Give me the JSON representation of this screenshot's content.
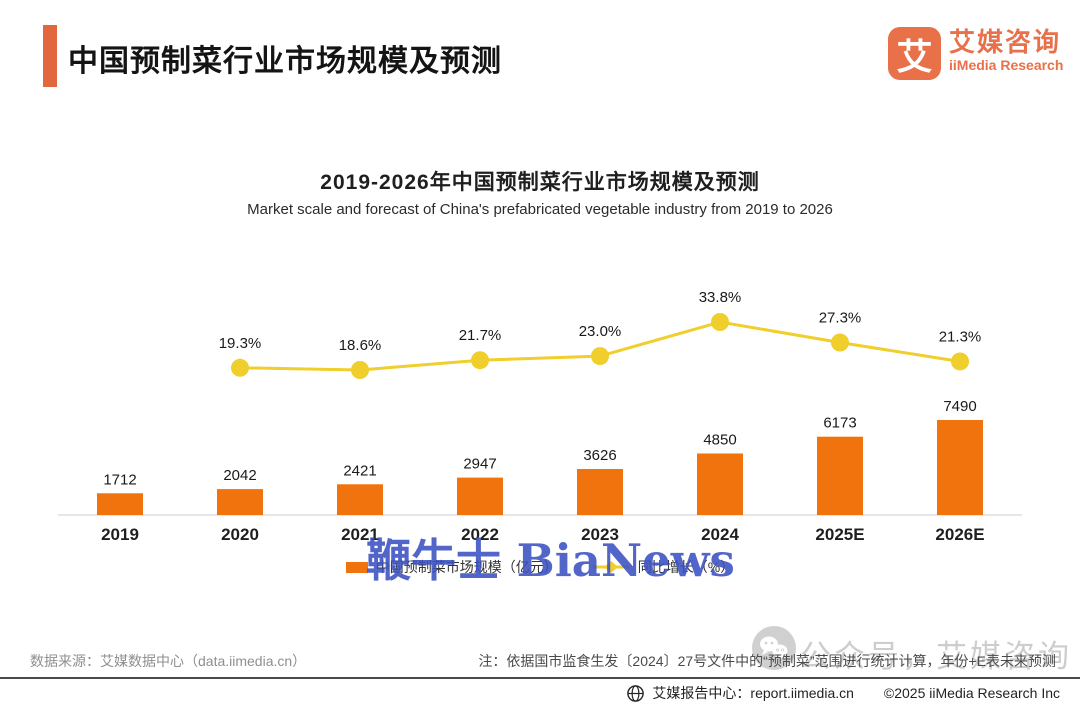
{
  "header": {
    "title": "中国预制菜行业市场规模及预测",
    "logo": {
      "glyph": "艾",
      "name_cn": "艾媒咨询",
      "name_en": "iiMedia Research"
    }
  },
  "chart": {
    "title": "2019-2026年中国预制菜行业市场规模及预测",
    "subtitle": "Market scale and forecast of China's prefabricated vegetable industry from 2019 to 2026"
  },
  "chart_data": {
    "type": "bar",
    "categories": [
      "2019",
      "2020",
      "2021",
      "2022",
      "2023",
      "2024",
      "2025E",
      "2026E"
    ],
    "series": [
      {
        "name": "中国预制菜市场规模（亿元）",
        "type": "bar",
        "color": "#F0730D",
        "values": [
          1712,
          2042,
          2421,
          2947,
          3626,
          4850,
          6173,
          7490
        ]
      },
      {
        "name": "同比增长（%）",
        "type": "line",
        "color": "#F0CE2B",
        "values": [
          null,
          19.3,
          18.6,
          21.7,
          23.0,
          33.8,
          27.3,
          21.3
        ]
      }
    ],
    "title": "2019-2026年中国预制菜行业市场规模及预测",
    "xlabel": "",
    "ylabel": "",
    "grid": false,
    "legend_position": "bottom"
  },
  "colors": {
    "accent": "#E2663E",
    "brand": "#E8714A",
    "bar": "#F0730D",
    "line": "#F0CE2B",
    "watermark_blue": "#3A50C2"
  },
  "watermarks": {
    "center": "鞭牛士 BiaNews",
    "right": "公众号，艾媒咨询"
  },
  "footer": {
    "source": "数据来源：艾媒数据中心（data.iimedia.cn）",
    "note": "注：依据国市监食生发〔2024〕27号文件中的“预制菜”范围进行统计计算，年份+E表未来预测",
    "report_center": "艾媒报告中心：report.iimedia.cn",
    "copyright": "©2025  iiMedia Research Inc"
  }
}
